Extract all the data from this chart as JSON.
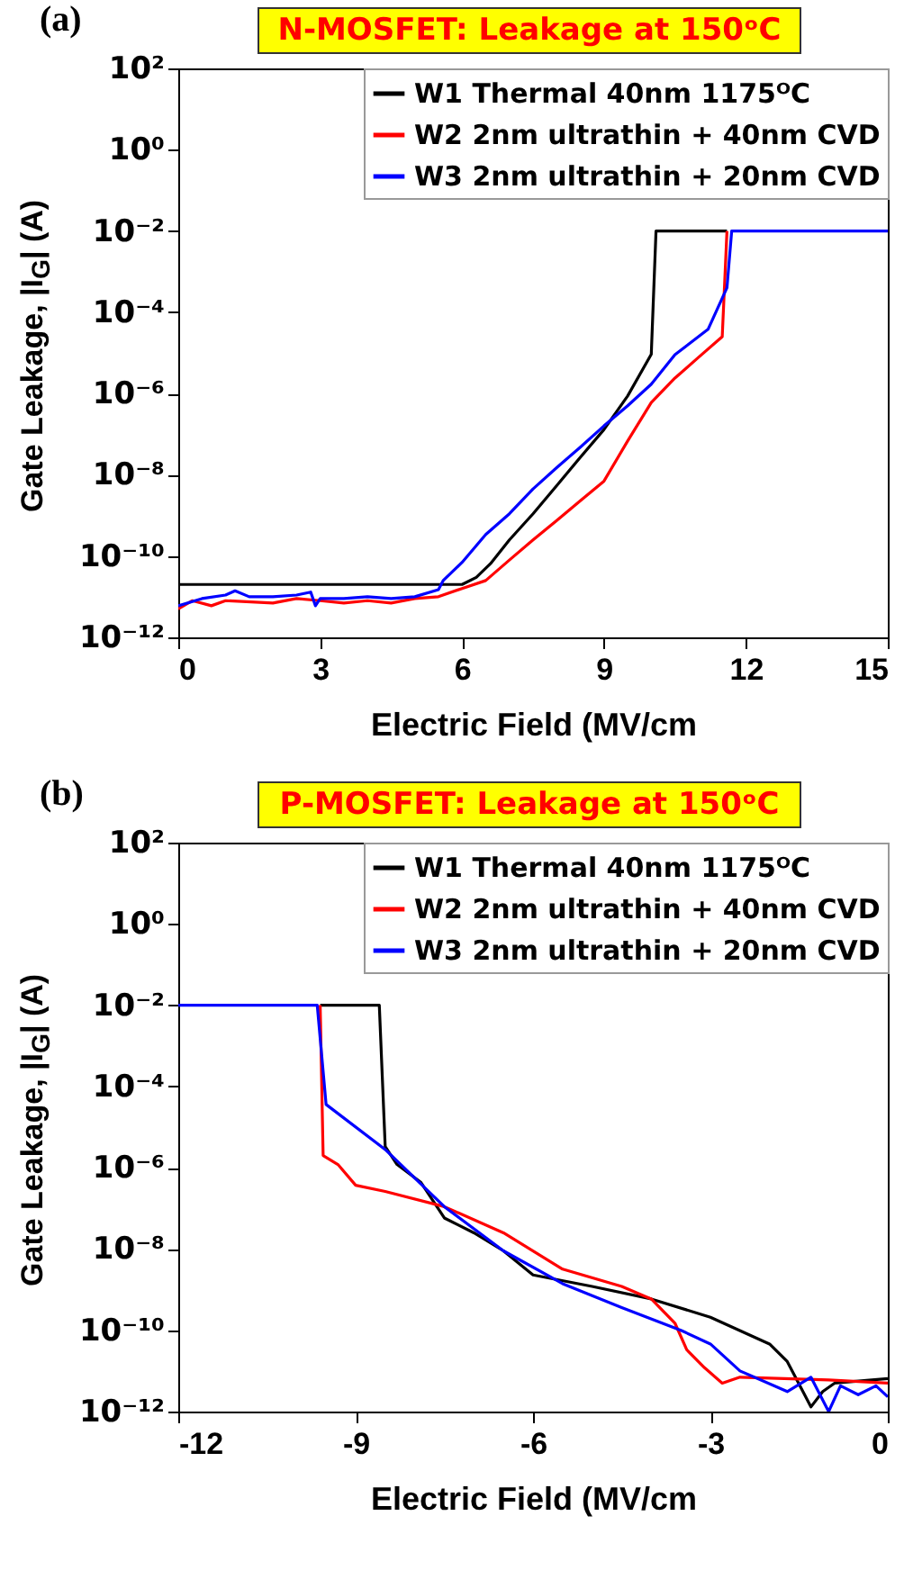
{
  "chart_data": [
    {
      "type": "line",
      "title": "N-MOSFET: Leakage at 150ᵒC",
      "xlabel": "Electric Field (MV/cm",
      "ylabel": "Gate Leakage, |I$_{G}$| (A)",
      "annotations": [
        "(a)"
      ],
      "log": true,
      "legend": "top right",
      "xlim": [
        0,
        15
      ],
      "xticks": [
        0,
        3,
        6,
        9,
        12,
        15
      ],
      "ylim": [
        1e-12,
        100
      ],
      "yticks": [
        {
          "value": 1e-12,
          "label": "10⁻¹²"
        },
        {
          "value": 1e-10,
          "label": "10⁻¹⁰"
        },
        {
          "value": 1e-08,
          "label": "10⁻⁸"
        },
        {
          "value": 1e-06,
          "label": "10⁻⁶"
        },
        {
          "value": 0.0001,
          "label": "10⁻⁴"
        },
        {
          "value": 0.01,
          "label": "10⁻²"
        },
        {
          "value": 1,
          "label": "10⁰"
        },
        {
          "value": 100,
          "label": "10²"
        }
      ],
      "series": [
        {
          "name": "W1 Thermal 40nm 1175ᴼC",
          "color": "#000000",
          "x": [
            0,
            0.5,
            1,
            2,
            3,
            4,
            5,
            6,
            6.3,
            6.6,
            7,
            7.5,
            8,
            8.5,
            9,
            9.5,
            10,
            10.1,
            11,
            11.6
          ],
          "values": [
            2e-11,
            2e-11,
            2e-11,
            2e-11,
            2e-11,
            2e-11,
            2e-11,
            2e-11,
            3e-11,
            6.5e-11,
            2.5e-10,
            1.1e-09,
            5.4e-09,
            2.7e-08,
            1.3e-07,
            8.7e-07,
            9.3e-06,
            0.01,
            0.01,
            0.01
          ]
        },
        {
          "name": "W2 2nm ultrathin + 40nm CVD",
          "color": "#ff0000",
          "x": [
            0,
            0.3,
            0.7,
            1,
            2,
            2.5,
            3,
            3.5,
            4,
            4.5,
            5,
            5.5,
            6,
            6.5,
            7,
            7.5,
            8,
            8.5,
            9,
            9.5,
            10,
            10.5,
            11,
            11.5,
            11.6
          ],
          "values": [
            5e-12,
            8e-12,
            6e-12,
            8e-12,
            7e-12,
            9e-12,
            8e-12,
            7e-12,
            8e-12,
            7e-12,
            9e-12,
            1e-11,
            1.6e-11,
            2.5e-11,
            8e-11,
            2.5e-10,
            7.5e-10,
            2.3e-09,
            7e-09,
            6.8e-08,
            6e-07,
            2.4e-06,
            7.8e-06,
            2.5e-05,
            0.01
          ]
        },
        {
          "name": "W3 2nm ultrathin + 20nm CVD",
          "color": "#0000ff",
          "x": [
            0,
            0.5,
            1,
            1.2,
            1.5,
            2,
            2.5,
            2.8,
            2.9,
            3,
            3.5,
            4,
            4.5,
            5,
            5.5,
            5.6,
            6,
            6.5,
            7,
            7.5,
            8,
            8.5,
            9,
            9.5,
            10,
            10.5,
            11.2,
            11.6,
            11.7,
            15
          ],
          "values": [
            6e-12,
            9e-12,
            1.1e-11,
            1.4e-11,
            1e-11,
            1e-11,
            1.1e-11,
            1.3e-11,
            6e-12,
            9e-12,
            9e-12,
            1e-11,
            9e-12,
            1e-11,
            1.5e-11,
            2.5e-11,
            7e-11,
            3.4e-10,
            1.1e-09,
            4.5e-09,
            1.5e-08,
            4.8e-08,
            1.6e-07,
            5e-07,
            1.7e-06,
            9e-06,
            3.8e-05,
            0.0004,
            0.01,
            0.01
          ]
        }
      ]
    },
    {
      "type": "line",
      "title": "P-MOSFET: Leakage at 150ᵒC",
      "xlabel": "Electric Field (MV/cm",
      "ylabel": "Gate Leakage, |I$_{G}$| (A)",
      "annotations": [
        "(b)"
      ],
      "log": true,
      "legend": "top right",
      "xlim": [
        -12,
        0
      ],
      "xticks": [
        -12,
        -9,
        -6,
        -3,
        0
      ],
      "ylim": [
        1e-12,
        100
      ],
      "yticks": [
        {
          "value": 1e-12,
          "label": "10⁻¹²"
        },
        {
          "value": 1e-10,
          "label": "10⁻¹⁰"
        },
        {
          "value": 1e-08,
          "label": "10⁻⁸"
        },
        {
          "value": 1e-06,
          "label": "10⁻⁶"
        },
        {
          "value": 0.0001,
          "label": "10⁻⁴"
        },
        {
          "value": 0.01,
          "label": "10⁻²"
        },
        {
          "value": 1,
          "label": "10⁰"
        },
        {
          "value": 100,
          "label": "10²"
        }
      ],
      "series": [
        {
          "name": "W1 Thermal 40nm 1175ᴼC",
          "color": "#000000",
          "x": [
            -9.6,
            -8.6,
            -8.5,
            -8.3,
            -7.9,
            -7.5,
            -7,
            -6.5,
            -6,
            -5,
            -4,
            -3,
            -2,
            -1.7,
            -1.3,
            -1.1,
            -0.9,
            0
          ],
          "values": [
            0.01,
            0.01,
            3.3e-06,
            1.2e-06,
            4.4e-07,
            5.8e-08,
            2.5e-08,
            9e-09,
            2.3e-09,
            1.2e-09,
            5.9e-10,
            2.1e-10,
            4.6e-11,
            1.7e-11,
            1.3e-12,
            3.1e-12,
            5e-12,
            6.5e-12
          ]
        },
        {
          "name": "W2 2nm ultrathin + 40nm CVD",
          "color": "#ff0000",
          "x": [
            -9.6,
            -9.55,
            -9.3,
            -9,
            -8.5,
            -7.5,
            -6.5,
            -5.5,
            -4.5,
            -4,
            -3.6,
            -3.4,
            -3.1,
            -2.8,
            -2.5,
            -1,
            0
          ],
          "values": [
            0.01,
            2e-06,
            1.2e-06,
            3.7e-07,
            2.6e-07,
            1.1e-07,
            2.5e-08,
            3.2e-09,
            1.2e-09,
            5.9e-10,
            1.5e-10,
            3.3e-11,
            1.2e-11,
            5e-12,
            7e-12,
            6e-12,
            5e-12
          ]
        },
        {
          "name": "W3 2nm ultrathin + 20nm CVD",
          "color": "#0000ff",
          "x": [
            -12,
            -9.65,
            -9.5,
            -8.5,
            -7.5,
            -6.5,
            -5.5,
            -4.5,
            -3.5,
            -3,
            -2.5,
            -1.7,
            -1.3,
            -1,
            -0.8,
            -0.5,
            -0.2,
            0
          ],
          "values": [
            0.01,
            0.01,
            3.6e-05,
            2.8e-06,
            1.1e-07,
            9e-09,
            1.4e-09,
            3.6e-10,
            1e-10,
            4.6e-11,
            1e-11,
            3.1e-12,
            7e-12,
            1e-12,
            4.3e-12,
            2.6e-12,
            4.3e-12,
            2.3e-12
          ]
        }
      ]
    }
  ]
}
